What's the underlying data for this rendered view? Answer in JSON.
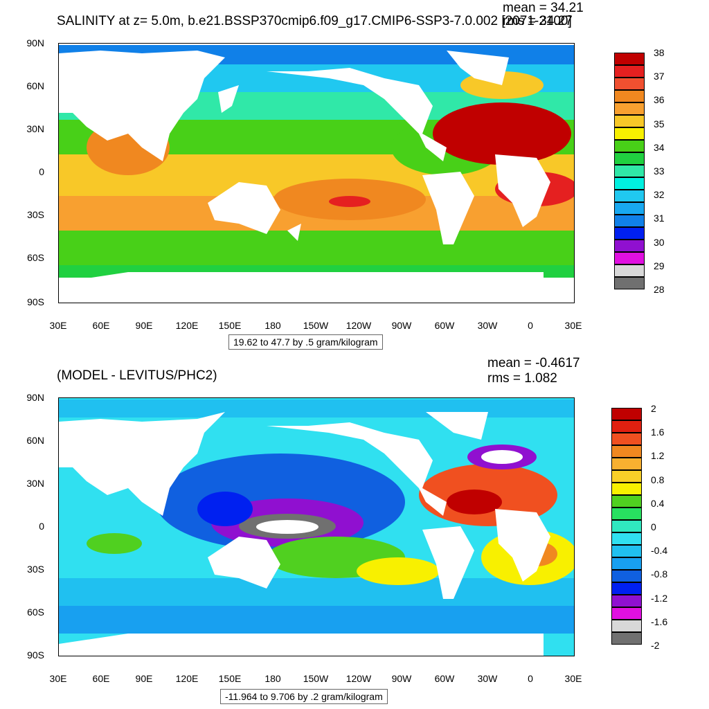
{
  "top": {
    "title": "SALINITY at z=   5.0m, b.e21.BSSP370cmip6.f09_g17.CMIP6-SSP3-7.0.002 [2071-2100]",
    "mean_text": "mean = 34.21",
    "rms_text": "rms = 34.27",
    "range_text": "19.62 to 47.7 by .5 gram/kilogram",
    "colorbar": {
      "labels": [
        "38",
        "37",
        "36",
        "35",
        "34",
        "33",
        "32",
        "31",
        "30",
        "29",
        "28"
      ],
      "colors": [
        "#c00000",
        "#e52020",
        "#f05030",
        "#f08820",
        "#f8a030",
        "#f8c828",
        "#f8f000",
        "#48d018",
        "#20d040",
        "#30e8a8",
        "#00f0e0",
        "#20c8f0",
        "#18a8f0",
        "#1080e8",
        "#0020f0",
        "#9010d0",
        "#e010e0",
        "#d8d8d8",
        "#707070"
      ]
    }
  },
  "bottom": {
    "title": "(MODEL - LEVITUS/PHC2)",
    "mean_text": "mean = -0.4617",
    "rms_text": "rms = 1.082",
    "range_text": "-11.964 to 9.706 by .2 gram/kilogram",
    "colorbar": {
      "labels": [
        "2",
        "1.6",
        "1.2",
        "0.8",
        "0.4",
        "0",
        "-0.4",
        "-0.8",
        "-1.2",
        "-1.6",
        "-2"
      ],
      "colors": [
        "#c00000",
        "#e02010",
        "#f05020",
        "#f08820",
        "#f8b030",
        "#f8d028",
        "#f8f000",
        "#50d020",
        "#28e060",
        "#30e8c0",
        "#30e0f0",
        "#20c0f0",
        "#18a0f0",
        "#1060e0",
        "#0020f0",
        "#9010d0",
        "#e010e0",
        "#d8d8d8",
        "#707070"
      ]
    }
  },
  "axes": {
    "lat_labels": [
      "90N",
      "60N",
      "30N",
      "0",
      "30S",
      "60S",
      "90S"
    ],
    "lon_labels": [
      "30E",
      "60E",
      "90E",
      "120E",
      "150E",
      "180",
      "150W",
      "120W",
      "90W",
      "60W",
      "30W",
      "0",
      "30E"
    ]
  }
}
